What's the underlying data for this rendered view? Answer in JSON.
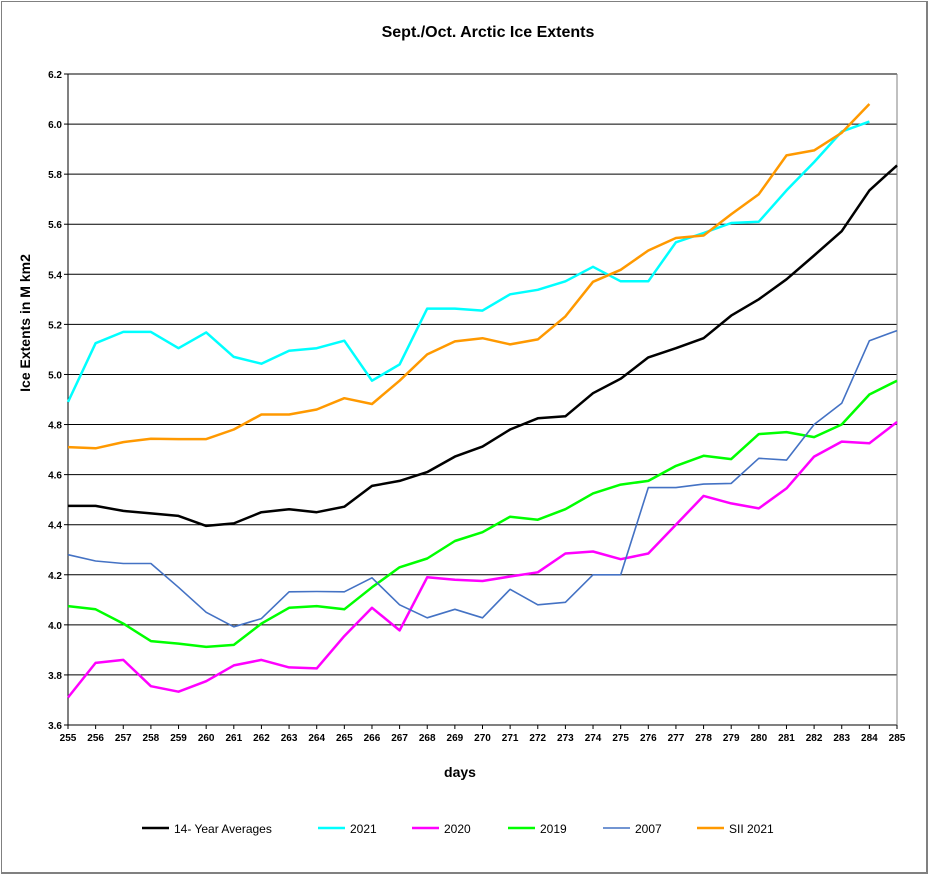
{
  "chart_data": {
    "type": "line",
    "title": "Sept./Oct.  Arctic Ice Extents",
    "xlabel": "days",
    "ylabel": "Ice Extents in M km2",
    "xlim": [
      255,
      285
    ],
    "ylim": [
      3.6,
      6.2
    ],
    "grid": "horizontal",
    "legend_position": "bottom",
    "x": [
      255,
      256,
      257,
      258,
      259,
      260,
      261,
      262,
      263,
      264,
      265,
      266,
      267,
      268,
      269,
      270,
      271,
      272,
      273,
      274,
      275,
      276,
      277,
      278,
      279,
      280,
      281,
      282,
      283,
      284,
      285
    ],
    "y_ticks": [
      "3.6",
      "3.8",
      "4.0",
      "4.2",
      "4.4",
      "4.6",
      "4.8",
      "5.0",
      "5.2",
      "5.4",
      "5.6",
      "5.8",
      "6.0",
      "6.2"
    ],
    "series": [
      {
        "name": "14- Year Averages",
        "color": "#000000",
        "values": [
          4.475,
          4.475,
          4.455,
          4.445,
          4.435,
          4.395,
          4.405,
          4.45,
          4.462,
          4.45,
          4.472,
          4.555,
          4.575,
          4.61,
          4.672,
          4.712,
          4.78,
          4.825,
          4.833,
          4.925,
          4.983,
          5.068,
          5.105,
          5.145,
          5.235,
          5.3,
          5.38,
          5.475,
          5.572,
          5.735,
          5.835
        ]
      },
      {
        "name": "2021",
        "color": "#00FFFF",
        "values": [
          4.89,
          5.125,
          5.17,
          5.17,
          5.105,
          5.168,
          5.07,
          5.043,
          5.095,
          5.105,
          5.135,
          4.975,
          5.04,
          5.263,
          5.263,
          5.255,
          5.32,
          5.338,
          5.372,
          5.43,
          5.372,
          5.372,
          5.528,
          5.565,
          5.605,
          5.61,
          5.735,
          5.848,
          5.97,
          6.01,
          null
        ]
      },
      {
        "name": "2020",
        "color": "#FF00FF",
        "values": [
          3.71,
          3.848,
          3.86,
          3.755,
          3.733,
          3.775,
          3.838,
          3.86,
          3.83,
          3.826,
          3.955,
          4.068,
          3.978,
          4.19,
          4.18,
          4.175,
          4.193,
          4.21,
          4.285,
          4.293,
          4.262,
          4.285,
          4.4,
          4.515,
          4.485,
          4.465,
          4.545,
          4.672,
          4.732,
          4.725,
          4.81
        ]
      },
      {
        "name": "2019",
        "color": "#00FF00",
        "values": [
          4.075,
          4.062,
          4.005,
          3.935,
          3.925,
          3.912,
          3.92,
          4.005,
          4.068,
          4.075,
          4.062,
          4.15,
          4.23,
          4.265,
          4.335,
          4.37,
          4.432,
          4.42,
          4.462,
          4.525,
          4.56,
          4.575,
          4.635,
          4.675,
          4.662,
          4.762,
          4.77,
          4.75,
          4.8,
          4.92,
          4.975
        ]
      },
      {
        "name": "2007",
        "color": "#4472C4",
        "values": [
          4.28,
          4.255,
          4.245,
          4.245,
          4.15,
          4.05,
          3.992,
          4.025,
          4.132,
          4.133,
          4.132,
          4.188,
          4.08,
          4.028,
          4.062,
          4.028,
          4.142,
          4.08,
          4.09,
          4.2,
          4.2,
          4.548,
          4.548,
          4.562,
          4.565,
          4.665,
          4.658,
          4.8,
          4.885,
          5.135,
          5.175
        ]
      },
      {
        "name": "SII 2021",
        "color": "#FF9900",
        "values": [
          4.71,
          4.705,
          4.73,
          4.743,
          4.742,
          4.742,
          4.78,
          4.84,
          4.84,
          4.86,
          4.905,
          4.882,
          4.975,
          5.08,
          5.132,
          5.145,
          5.12,
          5.14,
          5.232,
          5.37,
          5.418,
          5.495,
          5.545,
          5.555,
          5.64,
          5.72,
          5.875,
          5.895,
          5.965,
          6.08,
          null
        ]
      }
    ]
  }
}
